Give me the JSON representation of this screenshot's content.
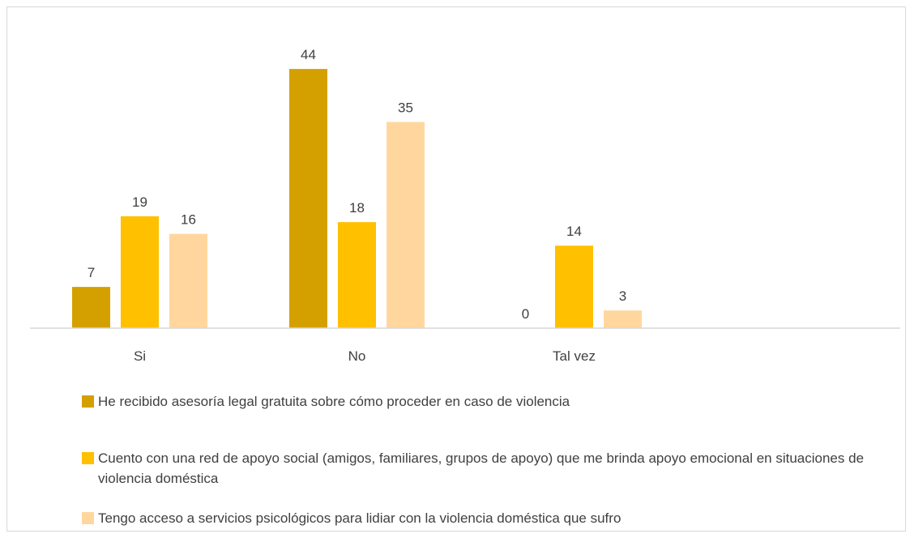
{
  "chart_data": {
    "type": "bar",
    "categories": [
      "Si",
      "No",
      "Tal vez"
    ],
    "series": [
      {
        "name": "He recibido asesoría legal gratuita sobre cómo proceder en caso de violencia",
        "values": [
          7,
          44,
          0
        ],
        "color": "#D4A000"
      },
      {
        "name": "Cuento con una red de apoyo social (amigos, familiares, grupos de apoyo) que me brinda apoyo emocional en situaciones de violencia doméstica",
        "values": [
          19,
          18,
          14
        ],
        "color": "#FFC000"
      },
      {
        "name": "Tengo acceso a servicios psicológicos para lidiar con la violencia doméstica que sufro",
        "values": [
          16,
          35,
          3
        ],
        "color": "#FFD79E"
      }
    ],
    "title": "",
    "xlabel": "",
    "ylabel": "",
    "ylim": [
      0,
      48
    ],
    "grid": false,
    "legend_position": "bottom"
  }
}
